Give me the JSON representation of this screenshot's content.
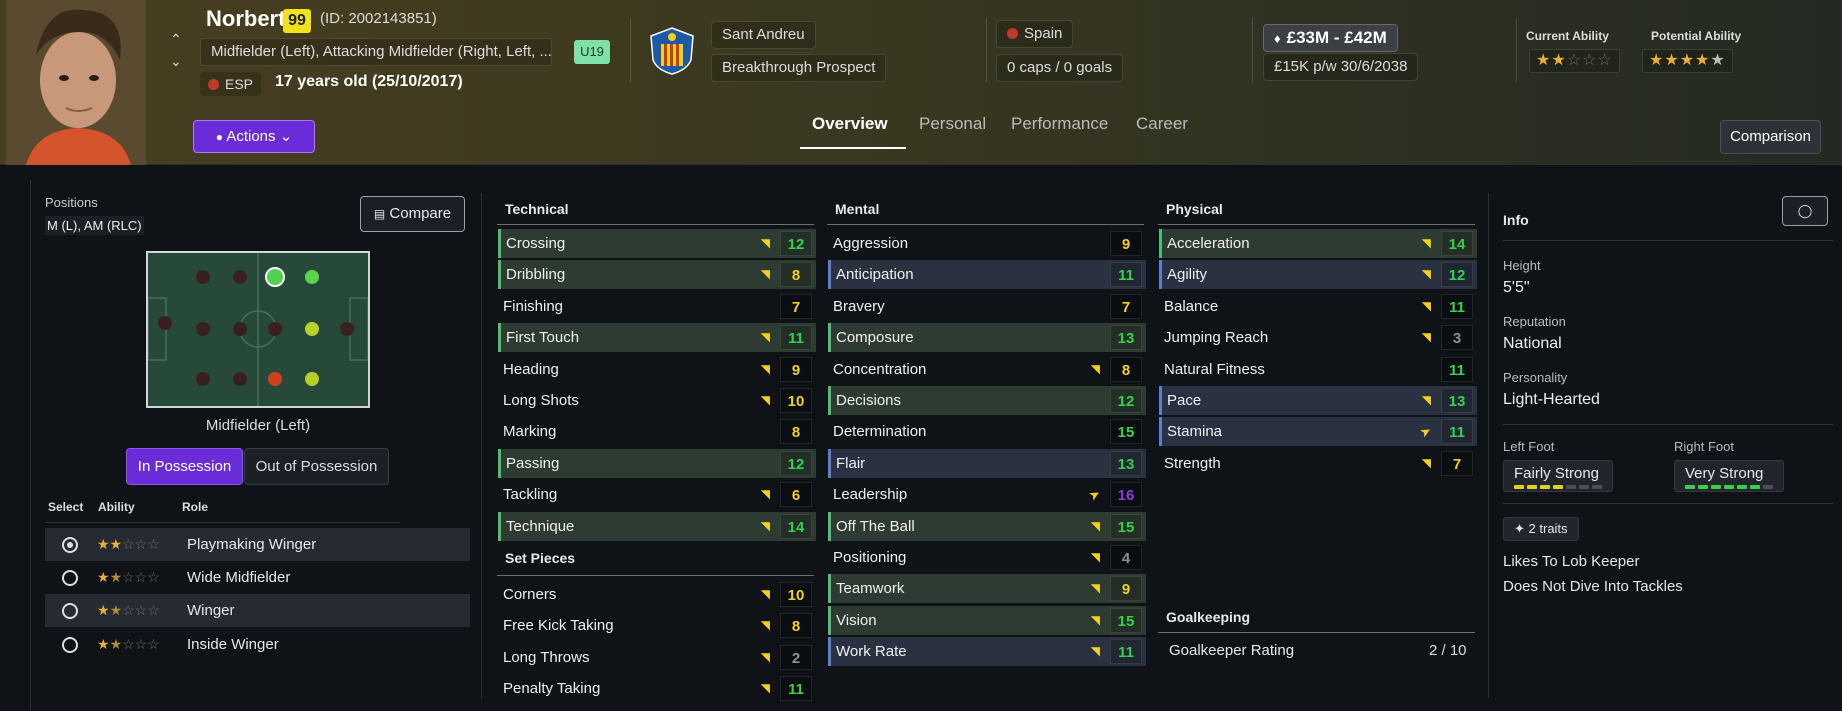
{
  "player": {
    "name": "Norbert",
    "ca_badge": "99",
    "id": "(ID: 2002143851)",
    "positions_long": "Midfielder (Left), Attacking Midfielder (Right, Left, ...",
    "nation_code": "ESP",
    "age": "17 years old (25/10/2017)",
    "age_group": "U19"
  },
  "club": {
    "name": "Sant Andreu",
    "status": "Breakthrough Prospect"
  },
  "nation": {
    "name": "Spain",
    "caps": "0 caps / 0 goals"
  },
  "value": {
    "range": "£33M - £42M",
    "contract": "£15K p/w",
    "expiry": "30/6/2038"
  },
  "ability": {
    "current_label": "Current Ability",
    "potential_label": "Potential Ability",
    "current_stars": 2,
    "potential_stars": 4.5
  },
  "actions_label": "Actions",
  "tabs": [
    "Overview",
    "Personal",
    "Performance",
    "Career"
  ],
  "comparison_label": "Comparison",
  "positions_panel": {
    "title": "Positions",
    "summary": "M (L), AM (RLC)",
    "compare_label": "Compare",
    "selected_position": "Midfielder (Left)",
    "seg_in": "In Possession",
    "seg_out": "Out of Possession",
    "col_select": "Select",
    "col_ability": "Ability",
    "col_role": "Role",
    "roles": [
      {
        "name": "Playmaking Winger",
        "stars": 2,
        "selected": true
      },
      {
        "name": "Wide Midfielder",
        "stars": 1.5,
        "selected": false
      },
      {
        "name": "Winger",
        "stars": 1.5,
        "selected": false
      },
      {
        "name": "Inside Winger",
        "stars": 1.5,
        "selected": false
      }
    ]
  },
  "technical": {
    "title": "Technical",
    "items": [
      {
        "name": "Crossing",
        "value": "12",
        "arrow": "up",
        "hl": "g",
        "col": "g"
      },
      {
        "name": "Dribbling",
        "value": "8",
        "arrow": "up",
        "hl": "g",
        "col": "y"
      },
      {
        "name": "Finishing",
        "value": "7",
        "arrow": "",
        "hl": "",
        "col": "y"
      },
      {
        "name": "First Touch",
        "value": "11",
        "arrow": "up",
        "hl": "g",
        "col": "g"
      },
      {
        "name": "Heading",
        "value": "9",
        "arrow": "up",
        "hl": "",
        "col": "y"
      },
      {
        "name": "Long Shots",
        "value": "10",
        "arrow": "up",
        "hl": "",
        "col": "y"
      },
      {
        "name": "Marking",
        "value": "8",
        "arrow": "",
        "hl": "",
        "col": "y"
      },
      {
        "name": "Passing",
        "value": "12",
        "arrow": "",
        "hl": "g",
        "col": "g"
      },
      {
        "name": "Tackling",
        "value": "6",
        "arrow": "up",
        "hl": "",
        "col": "y"
      },
      {
        "name": "Technique",
        "value": "14",
        "arrow": "up",
        "hl": "g",
        "col": "g"
      }
    ]
  },
  "set_pieces": {
    "title": "Set Pieces",
    "items": [
      {
        "name": "Corners",
        "value": "10",
        "arrow": "up",
        "hl": "",
        "col": "y"
      },
      {
        "name": "Free Kick Taking",
        "value": "8",
        "arrow": "up",
        "hl": "",
        "col": "y"
      },
      {
        "name": "Long Throws",
        "value": "2",
        "arrow": "up",
        "hl": "",
        "col": "gr"
      },
      {
        "name": "Penalty Taking",
        "value": "11",
        "arrow": "up",
        "hl": "",
        "col": "g"
      }
    ]
  },
  "mental": {
    "title": "Mental",
    "items": [
      {
        "name": "Aggression",
        "value": "9",
        "arrow": "",
        "hl": "",
        "col": "y"
      },
      {
        "name": "Anticipation",
        "value": "11",
        "arrow": "",
        "hl": "b",
        "col": "g"
      },
      {
        "name": "Bravery",
        "value": "7",
        "arrow": "",
        "hl": "",
        "col": "y"
      },
      {
        "name": "Composure",
        "value": "13",
        "arrow": "",
        "hl": "g",
        "col": "g"
      },
      {
        "name": "Concentration",
        "value": "8",
        "arrow": "up",
        "hl": "",
        "col": "y"
      },
      {
        "name": "Decisions",
        "value": "12",
        "arrow": "",
        "hl": "g",
        "col": "g"
      },
      {
        "name": "Determination",
        "value": "15",
        "arrow": "",
        "hl": "",
        "col": "g"
      },
      {
        "name": "Flair",
        "value": "13",
        "arrow": "",
        "hl": "b",
        "col": "g"
      },
      {
        "name": "Leadership",
        "value": "16",
        "arrow": "upp",
        "hl": "",
        "col": "p"
      },
      {
        "name": "Off The Ball",
        "value": "15",
        "arrow": "up",
        "hl": "g",
        "col": "g"
      },
      {
        "name": "Positioning",
        "value": "4",
        "arrow": "up",
        "hl": "",
        "col": "gr"
      },
      {
        "name": "Teamwork",
        "value": "9",
        "arrow": "up",
        "hl": "g",
        "col": "y"
      },
      {
        "name": "Vision",
        "value": "15",
        "arrow": "up",
        "hl": "g",
        "col": "g"
      },
      {
        "name": "Work Rate",
        "value": "11",
        "arrow": "up",
        "hl": "b",
        "col": "g"
      }
    ]
  },
  "physical": {
    "title": "Physical",
    "items": [
      {
        "name": "Acceleration",
        "value": "14",
        "arrow": "up",
        "hl": "g",
        "col": "g"
      },
      {
        "name": "Agility",
        "value": "12",
        "arrow": "up",
        "hl": "b",
        "col": "g"
      },
      {
        "name": "Balance",
        "value": "11",
        "arrow": "up",
        "hl": "",
        "col": "g"
      },
      {
        "name": "Jumping Reach",
        "value": "3",
        "arrow": "up",
        "hl": "",
        "col": "gr"
      },
      {
        "name": "Natural Fitness",
        "value": "11",
        "arrow": "",
        "hl": "",
        "col": "g"
      },
      {
        "name": "Pace",
        "value": "13",
        "arrow": "up",
        "hl": "b",
        "col": "g"
      },
      {
        "name": "Stamina",
        "value": "11",
        "arrow": "upp",
        "hl": "b",
        "col": "g"
      },
      {
        "name": "Strength",
        "value": "7",
        "arrow": "up",
        "hl": "",
        "col": "y"
      }
    ]
  },
  "goalkeeping": {
    "title": "Goalkeeping",
    "label": "Goalkeeper Rating",
    "value": "2 / 10"
  },
  "info": {
    "title": "Info",
    "height_label": "Height",
    "height": "5'5\"",
    "reputation_label": "Reputation",
    "reputation": "National",
    "personality_label": "Personality",
    "personality": "Light-Hearted",
    "left_foot_label": "Left Foot",
    "left_foot": "Fairly Strong",
    "left_foot_level": 4,
    "right_foot_label": "Right Foot",
    "right_foot": "Very Strong",
    "right_foot_level": 6,
    "traits_label": "2 traits",
    "traits": [
      "Likes To Lob Keeper",
      "Does Not Dive Into Tackles"
    ]
  },
  "colors": {
    "accent": "#6a2bd8",
    "good": "#37d24b",
    "mid": "#f2d11c",
    "great": "#8b3ee0"
  }
}
